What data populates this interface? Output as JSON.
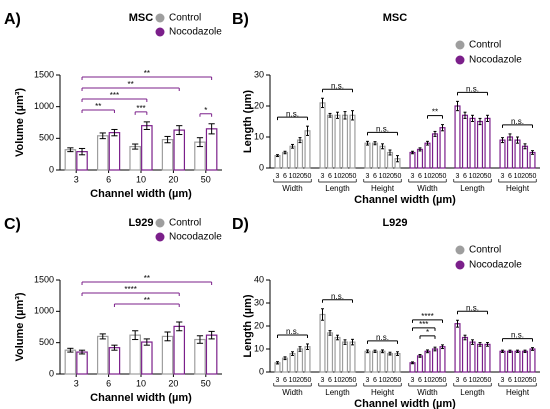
{
  "chart_data": [
    {
      "type": "bar",
      "panel": "A)",
      "title": "MSC",
      "ylabel": "Volume (µm³)",
      "xlabel": "Channel width (µm)",
      "categories": [
        "3",
        "6",
        "10",
        "20",
        "50"
      ],
      "ylim": [
        0,
        1500
      ],
      "yticks": [
        0,
        500,
        1000,
        1500
      ],
      "series": [
        {
          "name": "Control",
          "color": "#9e9e9e",
          "values": [
            320,
            540,
            370,
            480,
            440
          ],
          "errors": [
            30,
            45,
            40,
            50,
            70
          ]
        },
        {
          "name": "Nocodazole",
          "color": "#7b1f8a",
          "values": [
            290,
            590,
            700,
            630,
            650
          ],
          "errors": [
            50,
            50,
            60,
            70,
            80
          ]
        }
      ],
      "brackets": [
        {
          "label": "**",
          "from": 0,
          "to": 4
        },
        {
          "label": "**",
          "from": 0,
          "to": 3
        },
        {
          "label": "***",
          "from": 0,
          "to": 2
        },
        {
          "label": "**",
          "from": 0,
          "to": 1
        },
        {
          "label": "***",
          "from": 2,
          "to": 2
        },
        {
          "label": "*",
          "from": 4,
          "to": 4
        }
      ]
    },
    {
      "type": "bar",
      "panel": "B)",
      "title": "MSC",
      "ylabel": "Length (µm)",
      "xlabel": "Channel width (µm)",
      "categories": [
        "3",
        "6",
        "10",
        "20",
        "50"
      ],
      "groups": [
        "Width",
        "Length",
        "Height"
      ],
      "ylim": [
        0,
        30
      ],
      "yticks": [
        0,
        10,
        20,
        30
      ],
      "series": [
        {
          "name": "Control",
          "color": "#9e9e9e",
          "values": [
            [
              4,
              5,
              7,
              9,
              12
            ],
            [
              21,
              17,
              17,
              17,
              17
            ],
            [
              8,
              8,
              7,
              5,
              3
            ]
          ],
          "errors": [
            [
              0.3,
              0.4,
              0.6,
              0.8,
              1.5
            ],
            [
              1.5,
              0.6,
              1,
              1.2,
              1.5
            ],
            [
              0.6,
              0.5,
              0.8,
              0.8,
              1
            ]
          ]
        },
        {
          "name": "Nocodazole",
          "color": "#7b1f8a",
          "values": [
            [
              5,
              6,
              8,
              11,
              13
            ],
            [
              20,
              17,
              16,
              15,
              16
            ],
            [
              9,
              10,
              9,
              7,
              5
            ]
          ],
          "errors": [
            [
              0.4,
              0.5,
              0.6,
              0.8,
              1
            ],
            [
              1.5,
              1,
              1,
              1,
              1
            ],
            [
              0.8,
              1,
              1,
              0.8,
              0.6
            ]
          ]
        }
      ],
      "brackets": [
        {
          "label": "n.s.",
          "series": 0,
          "group": 0
        },
        {
          "label": "n.s.",
          "series": 0,
          "group": 1
        },
        {
          "label": "n.s.",
          "series": 0,
          "group": 2
        },
        {
          "label": "**",
          "series": 1,
          "group": 0,
          "from": 2,
          "to": 4
        },
        {
          "label": "n.s.",
          "series": 1,
          "group": 1
        },
        {
          "label": "n.s.",
          "series": 1,
          "group": 2
        }
      ]
    },
    {
      "type": "bar",
      "panel": "C)",
      "title": "L929",
      "ylabel": "Volume (µm³)",
      "xlabel": "Channel width (µm)",
      "categories": [
        "3",
        "6",
        "10",
        "20",
        "50"
      ],
      "ylim": [
        0,
        1500
      ],
      "yticks": [
        0,
        500,
        1000,
        1500
      ],
      "series": [
        {
          "name": "Control",
          "color": "#9e9e9e",
          "values": [
            380,
            600,
            620,
            600,
            550
          ],
          "errors": [
            30,
            40,
            70,
            70,
            60
          ]
        },
        {
          "name": "Nocodazole",
          "color": "#7b1f8a",
          "values": [
            350,
            420,
            510,
            760,
            620
          ],
          "errors": [
            30,
            40,
            50,
            70,
            60
          ]
        }
      ],
      "brackets": [
        {
          "label": "**",
          "from": 0,
          "to": 4
        },
        {
          "label": "****",
          "from": 0,
          "to": 3
        },
        {
          "label": "**",
          "from": 1,
          "to": 3
        }
      ]
    },
    {
      "type": "bar",
      "panel": "D)",
      "title": "L929",
      "ylabel": "Length (µm)",
      "xlabel": "Channel width (µm)",
      "categories": [
        "3",
        "6",
        "10",
        "20",
        "50"
      ],
      "groups": [
        "Width",
        "Length",
        "Height"
      ],
      "ylim": [
        0,
        40
      ],
      "yticks": [
        0,
        10,
        20,
        30,
        40
      ],
      "series": [
        {
          "name": "Control",
          "color": "#9e9e9e",
          "values": [
            [
              4,
              6,
              8,
              10,
              11
            ],
            [
              25,
              17,
              15,
              13,
              13
            ],
            [
              9,
              9,
              9,
              8,
              8
            ]
          ],
          "errors": [
            [
              0.5,
              0.6,
              0.8,
              1,
              1.2
            ],
            [
              2.5,
              1,
              1,
              1,
              1.2
            ],
            [
              0.6,
              0.5,
              0.6,
              0.6,
              0.8
            ]
          ]
        },
        {
          "name": "Nocodazole",
          "color": "#7b1f8a",
          "values": [
            [
              4,
              7,
              9,
              10,
              11
            ],
            [
              21,
              15,
              13,
              12,
              12
            ],
            [
              9,
              9,
              9,
              9,
              10
            ]
          ],
          "errors": [
            [
              0.4,
              0.6,
              0.6,
              0.8,
              0.8
            ],
            [
              1.5,
              1,
              1,
              0.8,
              0.8
            ],
            [
              0.5,
              0.5,
              0.5,
              0.5,
              0.6
            ]
          ]
        }
      ],
      "brackets": [
        {
          "label": "n.s.",
          "series": 0,
          "group": 0
        },
        {
          "label": "n.s.",
          "series": 0,
          "group": 1
        },
        {
          "label": "n.s.",
          "series": 0,
          "group": 2
        },
        {
          "label": "****",
          "series": 1,
          "group": 0,
          "from": 0,
          "to": 4
        },
        {
          "label": "***",
          "series": 1,
          "group": 0,
          "from": 0,
          "to": 3
        },
        {
          "label": "*",
          "series": 1,
          "group": 0,
          "from": 1,
          "to": 3
        },
        {
          "label": "n.s.",
          "series": 1,
          "group": 1
        },
        {
          "label": "n.s.",
          "series": 1,
          "group": 2
        }
      ]
    }
  ]
}
